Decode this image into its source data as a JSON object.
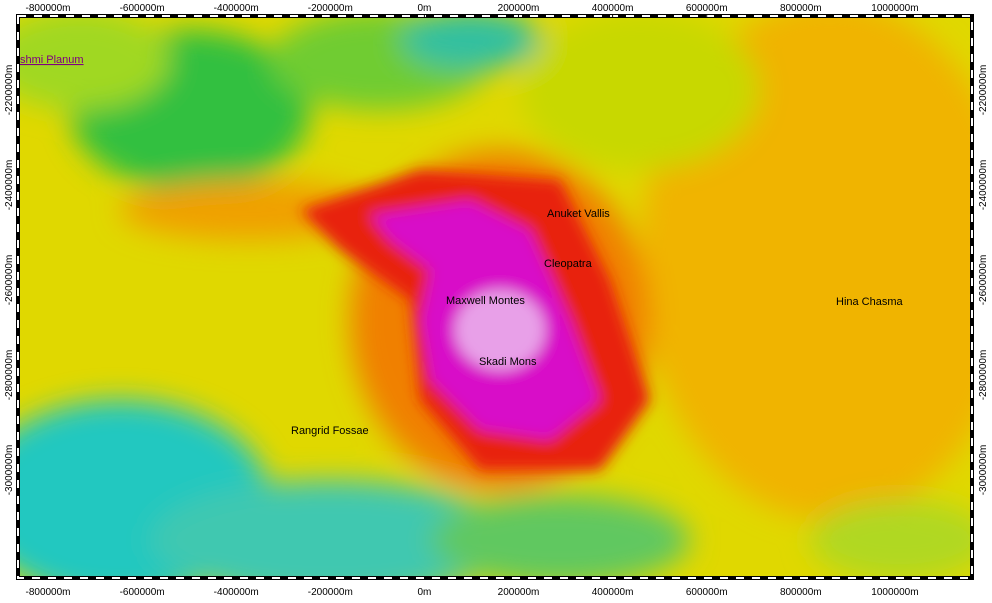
{
  "x_axis": {
    "labels": [
      "-800000m",
      "-600000m",
      "-400000m",
      "-200000m",
      "0m",
      "200000m",
      "400000m",
      "600000m",
      "800000m",
      "1000000m"
    ]
  },
  "y_axis": {
    "labels": [
      "-2200000m",
      "-2400000m",
      "-2600000m",
      "-2800000m",
      "-3000000m"
    ]
  },
  "features": [
    {
      "label": "shmi Planum"
    },
    {
      "label": "Anuket Vallis"
    },
    {
      "label": "Cleopatra"
    },
    {
      "label": "Maxwell Montes"
    },
    {
      "label": "Skadi Mons"
    },
    {
      "label": "Hina Chasma"
    },
    {
      "label": "Rangrid Fossae"
    }
  ]
}
